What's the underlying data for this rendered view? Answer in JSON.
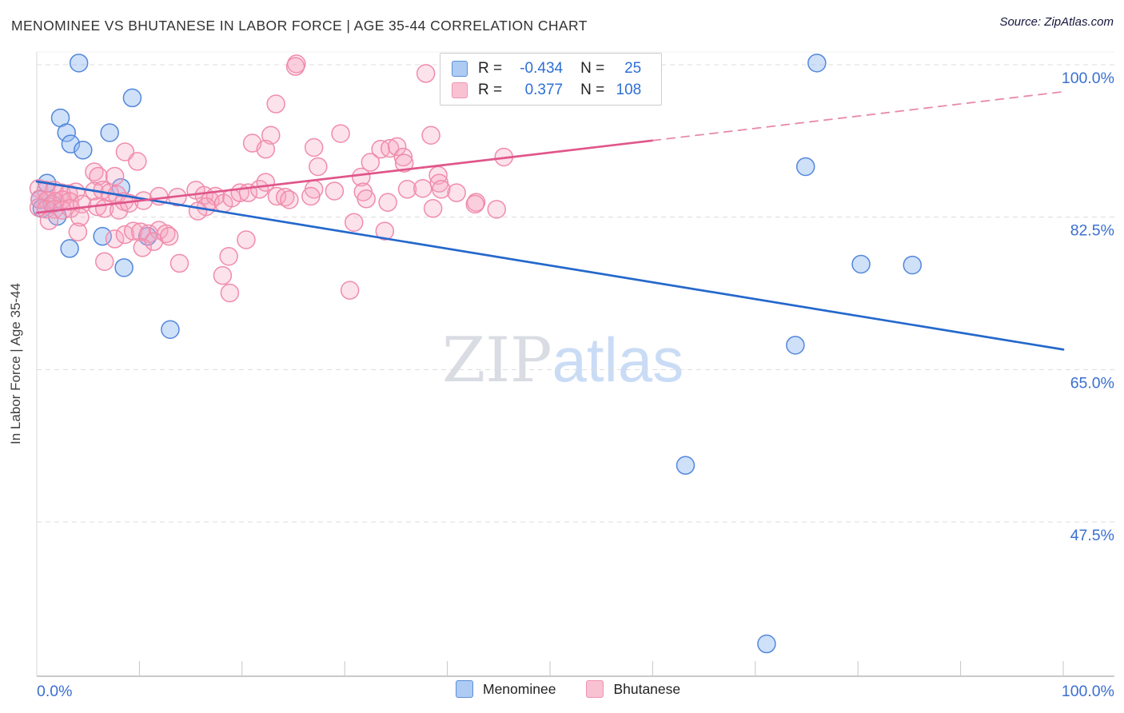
{
  "header": {
    "title": "MENOMINEE VS BHUTANESE IN LABOR FORCE | AGE 35-44 CORRELATION CHART",
    "source": "Source: ZipAtlas.com"
  },
  "watermark": {
    "zip": "ZIP",
    "atlas": "atlas"
  },
  "stats_legend": {
    "rows": [
      {
        "series": "Menominee",
        "r_label": "R =",
        "r": "-0.434",
        "n_label": "N =",
        "n": "25"
      },
      {
        "series": "Bhutanese",
        "r_label": "R =",
        "r": "0.377",
        "n_label": "N =",
        "n": "108"
      }
    ]
  },
  "axes": {
    "y_label": "In Labor Force | Age 35-44",
    "x_left_label": "0.0%",
    "x_right_label": "100.0%"
  },
  "bottom_legend": [
    {
      "label": "Menominee"
    },
    {
      "label": "Bhutanese"
    }
  ],
  "chart_data": {
    "type": "scatter",
    "title": "MENOMINEE VS BHUTANESE IN LABOR FORCE | AGE 35-44 CORRELATION CHART",
    "xlabel_left": "0.0%",
    "xlabel_right": "100.0%",
    "ylabel": "In Labor Force | Age 35-44",
    "xlim": [
      0,
      100
    ],
    "ylim": [
      29.8,
      101.5
    ],
    "grid": "horizontal-dashed",
    "legend_position": "top-center",
    "y_ticks": [
      {
        "value": 100.0,
        "label": "100.0%"
      },
      {
        "value": 82.5,
        "label": "82.5%"
      },
      {
        "value": 65.0,
        "label": "65.0%"
      },
      {
        "value": 47.5,
        "label": "47.5%"
      }
    ],
    "x_tick_values": [
      10,
      20,
      30,
      40,
      50,
      60,
      70,
      80,
      90,
      100
    ],
    "series": [
      {
        "name": "Menominee",
        "r": -0.434,
        "n": 25,
        "point_stroke": "#5287db",
        "point_fill": "rgba(148,187,241,0.45)",
        "points": [
          [
            4.1,
            100.2
          ],
          [
            9.3,
            96.2
          ],
          [
            2.3,
            93.9
          ],
          [
            2.9,
            92.2
          ],
          [
            3.3,
            90.9
          ],
          [
            4.5,
            90.2
          ],
          [
            7.1,
            92.2
          ],
          [
            1.0,
            86.4
          ],
          [
            0.3,
            84.5
          ],
          [
            0.5,
            83.5
          ],
          [
            1.5,
            84.0
          ],
          [
            2.0,
            82.6
          ],
          [
            8.2,
            85.9
          ],
          [
            6.4,
            80.3
          ],
          [
            3.2,
            78.9
          ],
          [
            10.8,
            80.3
          ],
          [
            8.5,
            76.7
          ],
          [
            13.0,
            69.6
          ],
          [
            74.9,
            88.3
          ],
          [
            76.0,
            100.2
          ],
          [
            80.3,
            77.1
          ],
          [
            85.3,
            77.0
          ],
          [
            73.9,
            67.8
          ],
          [
            63.2,
            54.0
          ],
          [
            71.1,
            33.5
          ]
        ]
      },
      {
        "name": "Bhutanese",
        "r": 0.377,
        "n": 108,
        "point_stroke": "#f08cab",
        "point_fill": "rgba(246,166,193,0.32)",
        "points": [
          [
            0.2,
            85.8
          ],
          [
            0.9,
            85.6
          ],
          [
            1.7,
            85.6
          ],
          [
            2.4,
            85.3
          ],
          [
            3.1,
            85.2
          ],
          [
            3.8,
            85.4
          ],
          [
            0.3,
            84.6
          ],
          [
            1.0,
            84.4
          ],
          [
            1.8,
            84.3
          ],
          [
            2.5,
            84.5
          ],
          [
            3.2,
            84.3
          ],
          [
            0.2,
            83.6
          ],
          [
            0.9,
            83.4
          ],
          [
            1.7,
            83.4
          ],
          [
            2.5,
            83.3
          ],
          [
            3.3,
            83.5
          ],
          [
            4.4,
            84.0
          ],
          [
            1.2,
            82.1
          ],
          [
            4.2,
            82.5
          ],
          [
            5.6,
            87.7
          ],
          [
            6.0,
            87.2
          ],
          [
            8.6,
            90.0
          ],
          [
            9.8,
            88.9
          ],
          [
            7.6,
            87.2
          ],
          [
            5.6,
            85.5
          ],
          [
            6.4,
            85.6
          ],
          [
            7.1,
            85.3
          ],
          [
            7.8,
            85.1
          ],
          [
            8.5,
            84.3
          ],
          [
            5.9,
            83.7
          ],
          [
            6.6,
            83.5
          ],
          [
            8.0,
            83.3
          ],
          [
            9.0,
            84.1
          ],
          [
            10.4,
            84.4
          ],
          [
            11.9,
            84.9
          ],
          [
            13.7,
            84.8
          ],
          [
            4.0,
            80.8
          ],
          [
            7.6,
            80.0
          ],
          [
            8.6,
            80.5
          ],
          [
            9.4,
            80.9
          ],
          [
            10.1,
            80.8
          ],
          [
            10.9,
            80.6
          ],
          [
            11.9,
            81.0
          ],
          [
            12.6,
            80.6
          ],
          [
            10.3,
            79.0
          ],
          [
            11.4,
            79.7
          ],
          [
            12.9,
            80.3
          ],
          [
            6.6,
            77.4
          ],
          [
            15.5,
            85.6
          ],
          [
            16.3,
            85.0
          ],
          [
            16.9,
            84.4
          ],
          [
            17.4,
            84.9
          ],
          [
            16.5,
            83.7
          ],
          [
            15.7,
            83.2
          ],
          [
            18.2,
            84.1
          ],
          [
            19.0,
            84.7
          ],
          [
            19.8,
            85.3
          ],
          [
            20.6,
            85.3
          ],
          [
            21.7,
            85.7
          ],
          [
            22.3,
            86.5
          ],
          [
            23.3,
            95.5
          ],
          [
            25.3,
            100.1
          ],
          [
            25.2,
            99.8
          ],
          [
            20.4,
            79.9
          ],
          [
            18.7,
            78.0
          ],
          [
            18.1,
            75.8
          ],
          [
            18.8,
            73.8
          ],
          [
            13.9,
            77.2
          ],
          [
            21.0,
            91.0
          ],
          [
            22.8,
            91.9
          ],
          [
            22.3,
            90.3
          ],
          [
            27.0,
            90.5
          ],
          [
            29.6,
            92.1
          ],
          [
            33.5,
            90.3
          ],
          [
            34.4,
            90.4
          ],
          [
            35.1,
            90.6
          ],
          [
            35.7,
            89.4
          ],
          [
            35.8,
            88.7
          ],
          [
            27.4,
            88.3
          ],
          [
            32.5,
            88.8
          ],
          [
            38.4,
            91.9
          ],
          [
            37.9,
            99.0
          ],
          [
            31.6,
            87.1
          ],
          [
            39.1,
            87.3
          ],
          [
            39.2,
            86.4
          ],
          [
            23.4,
            84.9
          ],
          [
            24.2,
            84.8
          ],
          [
            24.6,
            84.5
          ],
          [
            27.0,
            85.7
          ],
          [
            26.7,
            84.9
          ],
          [
            29.0,
            85.5
          ],
          [
            31.8,
            85.4
          ],
          [
            32.1,
            84.6
          ],
          [
            34.2,
            84.2
          ],
          [
            36.1,
            85.7
          ],
          [
            37.6,
            85.8
          ],
          [
            39.4,
            85.7
          ],
          [
            40.9,
            85.3
          ],
          [
            42.8,
            84.2
          ],
          [
            44.8,
            83.4
          ],
          [
            38.6,
            83.5
          ],
          [
            42.7,
            84.0
          ],
          [
            30.5,
            74.1
          ],
          [
            30.9,
            81.9
          ],
          [
            33.9,
            80.9
          ],
          [
            45.5,
            89.4
          ],
          [
            52.7,
            100.3
          ],
          [
            59.7,
            100.3
          ]
        ]
      }
    ],
    "trend_lines": [
      {
        "series": "Menominee",
        "color": "#2468cc",
        "style": "solid",
        "x1": 0,
        "y1": 86.6,
        "x2": 100,
        "y2": 67.3
      },
      {
        "series": "Bhutanese",
        "color": "#e0568a",
        "style": "solid",
        "x1": 0,
        "y1": 83.0,
        "x2": 60,
        "y2": 91.3
      },
      {
        "series": "Bhutanese",
        "color": "#e88aa8",
        "style": "dashed",
        "x1": 60,
        "y1": 91.3,
        "x2": 100,
        "y2": 96.9
      }
    ],
    "colors": {
      "grid": "#dcdcdc",
      "axis": "#b9b9b9",
      "tick_label": "#3a6fd0"
    }
  }
}
